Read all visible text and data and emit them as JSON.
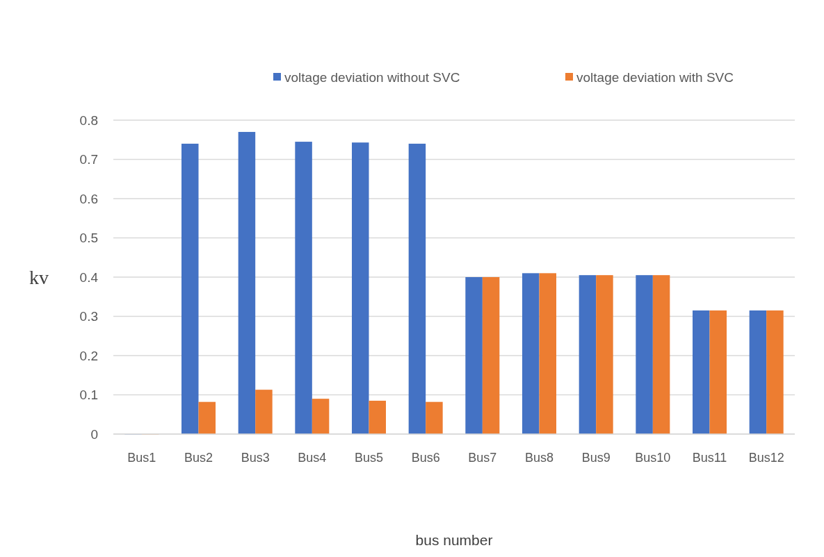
{
  "chart_data": {
    "type": "bar",
    "xlabel": "bus number",
    "ylabel": "kv",
    "categories": [
      "Bus1",
      "Bus2",
      "Bus3",
      "Bus4",
      "Bus5",
      "Bus6",
      "Bus7",
      "Bus8",
      "Bus9",
      "Bus10",
      "Bus11",
      "Bus12"
    ],
    "series": [
      {
        "name": "voltage deviation without SVC",
        "color": "#4472c4",
        "values": [
          0,
          0.74,
          0.77,
          0.745,
          0.743,
          0.74,
          0.4,
          0.41,
          0.405,
          0.405,
          0.315,
          0.315
        ]
      },
      {
        "name": "voltage deviation with SVC",
        "color": "#ed7d31",
        "values": [
          0,
          0.082,
          0.113,
          0.09,
          0.085,
          0.082,
          0.4,
          0.41,
          0.405,
          0.405,
          0.315,
          0.315
        ]
      }
    ],
    "ylim": [
      0,
      0.8
    ],
    "yticks": [
      0,
      0.1,
      0.2,
      0.3,
      0.4,
      0.5,
      0.6,
      0.7,
      0.8
    ],
    "grid": "y",
    "legend": "top"
  }
}
